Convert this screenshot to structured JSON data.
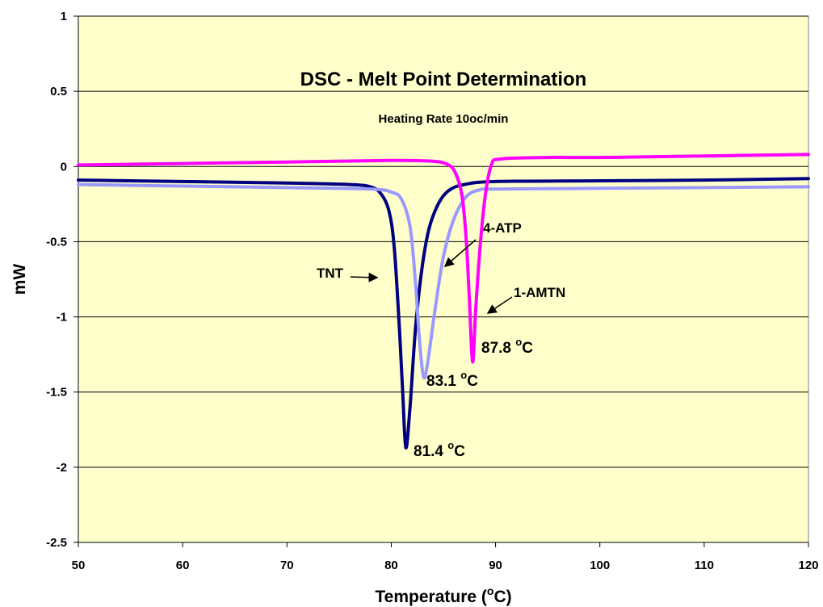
{
  "chart_data": {
    "type": "line",
    "title": "DSC - Melt Point Determination",
    "subtitle": "Heating Rate 10oc/min",
    "xlabel": "Temperature (",
    "xlabel_sup": "o",
    "xlabel_end": "C)",
    "ylabel": "mW",
    "xlim": [
      50,
      120
    ],
    "ylim": [
      -2.5,
      1
    ],
    "xticks": [
      "50",
      "60",
      "70",
      "80",
      "90",
      "100",
      "110",
      "120"
    ],
    "yticks": [
      "1",
      "0.5",
      "0",
      "-0.5",
      "-1",
      "-1.5",
      "-2",
      "-2.5"
    ],
    "grid": "horizontal",
    "colors": {
      "plot_background": "#ffffcc",
      "tnt": "#000080",
      "atp": "#9999ff",
      "amtn": "#ff00ff",
      "grid": "#000000"
    },
    "series": [
      {
        "key": "tnt",
        "points": [
          [
            50,
            -0.09
          ],
          [
            60,
            -0.1
          ],
          [
            70,
            -0.11
          ],
          [
            76,
            -0.12
          ],
          [
            78,
            -0.135
          ],
          [
            79,
            -0.18
          ],
          [
            79.8,
            -0.3
          ],
          [
            80.3,
            -0.55
          ],
          [
            80.8,
            -1.1
          ],
          [
            81.1,
            -1.5
          ],
          [
            81.4,
            -1.87
          ],
          [
            81.8,
            -1.6
          ],
          [
            82.3,
            -1.1
          ],
          [
            82.9,
            -0.7
          ],
          [
            83.6,
            -0.42
          ],
          [
            84.5,
            -0.25
          ],
          [
            85.5,
            -0.16
          ],
          [
            87,
            -0.12
          ],
          [
            90,
            -0.1
          ],
          [
            100,
            -0.095
          ],
          [
            110,
            -0.09
          ],
          [
            120,
            -0.08
          ]
        ]
      },
      {
        "key": "atp",
        "points": [
          [
            50,
            -0.12
          ],
          [
            60,
            -0.13
          ],
          [
            70,
            -0.14
          ],
          [
            78,
            -0.15
          ],
          [
            80,
            -0.17
          ],
          [
            81,
            -0.22
          ],
          [
            81.8,
            -0.4
          ],
          [
            82.3,
            -0.75
          ],
          [
            82.7,
            -1.15
          ],
          [
            83.1,
            -1.4
          ],
          [
            83.5,
            -1.3
          ],
          [
            84.2,
            -0.95
          ],
          [
            85,
            -0.6
          ],
          [
            86,
            -0.35
          ],
          [
            87.2,
            -0.2
          ],
          [
            88.5,
            -0.155
          ],
          [
            90,
            -0.15
          ],
          [
            100,
            -0.145
          ],
          [
            110,
            -0.14
          ],
          [
            120,
            -0.135
          ]
        ]
      },
      {
        "key": "amtn",
        "points": [
          [
            50,
            0.01
          ],
          [
            60,
            0.02
          ],
          [
            70,
            0.03
          ],
          [
            80,
            0.04
          ],
          [
            84,
            0.035
          ],
          [
            85.5,
            0.01
          ],
          [
            86.2,
            -0.05
          ],
          [
            86.8,
            -0.2
          ],
          [
            87.2,
            -0.5
          ],
          [
            87.5,
            -0.9
          ],
          [
            87.8,
            -1.3
          ],
          [
            88.1,
            -0.95
          ],
          [
            88.5,
            -0.55
          ],
          [
            89,
            -0.2
          ],
          [
            89.6,
            0.01
          ],
          [
            90.5,
            0.05
          ],
          [
            95,
            0.06
          ],
          [
            100,
            0.06
          ],
          [
            110,
            0.07
          ],
          [
            120,
            0.08
          ]
        ]
      }
    ],
    "annotations": {
      "tnt_label": "TNT",
      "atp_label": "4-ATP",
      "amtn_label": "1-AMTN",
      "tnt_peak": "81.4 ",
      "atp_peak": "83.1 ",
      "amtn_peak": "87.8 ",
      "degree_sup": "o",
      "unit": "C"
    }
  }
}
